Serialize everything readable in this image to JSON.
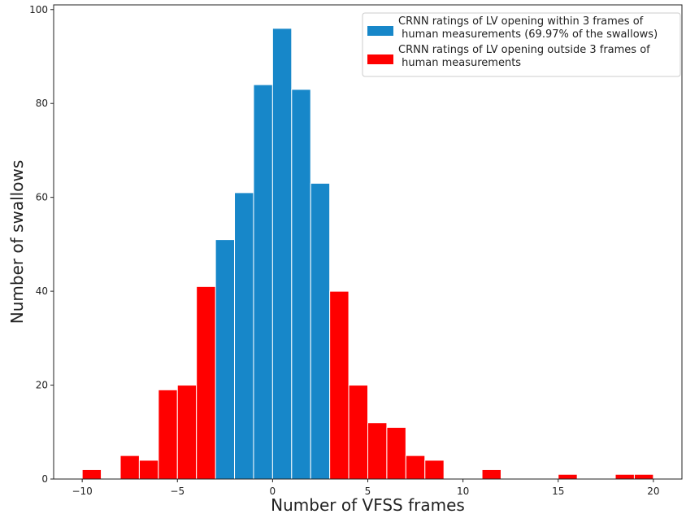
{
  "chart_data": {
    "type": "bar",
    "title": "",
    "xlabel": "Number of VFSS frames",
    "ylabel": "Number of swallows",
    "xlim": [
      -11.5,
      21.5
    ],
    "ylim": [
      0,
      101
    ],
    "xticks": [
      -10,
      -5,
      0,
      5,
      10,
      15,
      20
    ],
    "xtick_labels": [
      "−10",
      "−5",
      "0",
      "5",
      "10",
      "15",
      "20"
    ],
    "yticks": [
      0,
      20,
      40,
      60,
      80,
      100
    ],
    "ytick_labels": [
      "0",
      "20",
      "40",
      "60",
      "80",
      "100"
    ],
    "bin_width": 1,
    "grid": false,
    "legend_position": "top-right",
    "series": [
      {
        "name": "CRNN ratings of LV opening within 3 frames of\n human measurements (69.97% of the swallows)",
        "color": "#1787c9",
        "bins": [
          {
            "x": -3,
            "value": 51
          },
          {
            "x": -2,
            "value": 61
          },
          {
            "x": -1,
            "value": 84
          },
          {
            "x": 0,
            "value": 96
          },
          {
            "x": 1,
            "value": 83
          },
          {
            "x": 2,
            "value": 63
          }
        ]
      },
      {
        "name": "CRNN ratings of LV opening outside 3 frames of\n human measurements",
        "color": "#ff0000",
        "bins": [
          {
            "x": -10,
            "value": 2
          },
          {
            "x": -8,
            "value": 5
          },
          {
            "x": -7,
            "value": 4
          },
          {
            "x": -6,
            "value": 19
          },
          {
            "x": -5,
            "value": 20
          },
          {
            "x": -4,
            "value": 41
          },
          {
            "x": 3,
            "value": 40
          },
          {
            "x": 4,
            "value": 20
          },
          {
            "x": 5,
            "value": 12
          },
          {
            "x": 6,
            "value": 11
          },
          {
            "x": 7,
            "value": 5
          },
          {
            "x": 8,
            "value": 4
          },
          {
            "x": 11,
            "value": 2
          },
          {
            "x": 15,
            "value": 1
          },
          {
            "x": 18,
            "value": 1
          },
          {
            "x": 19,
            "value": 1
          }
        ]
      }
    ]
  }
}
